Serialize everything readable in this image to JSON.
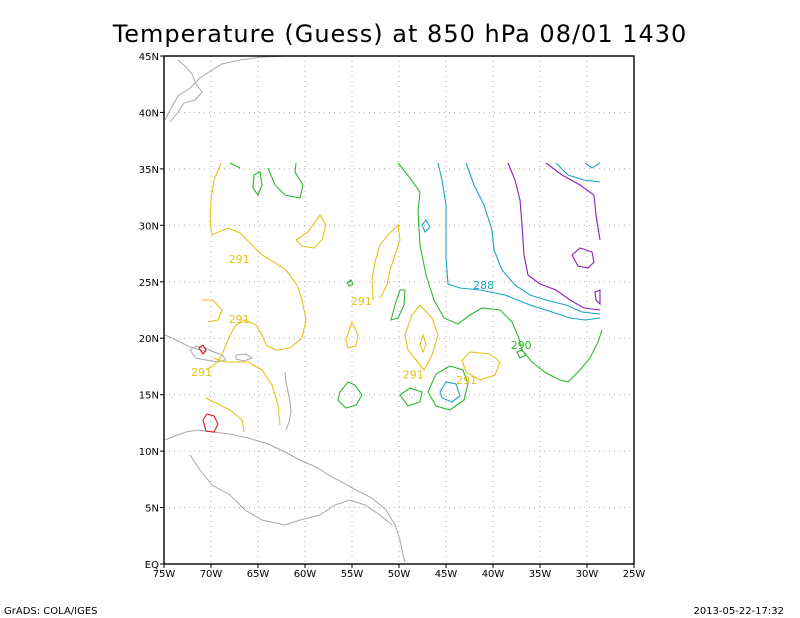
{
  "title": "Temperature (Guess) at 850 hPa 08/01 1430",
  "footer": {
    "left": "GrADS: COLA/IGES",
    "right": "2013-05-22-17:32"
  },
  "map": {
    "lon_range": [
      -75,
      -25
    ],
    "lat_range": [
      0,
      45
    ],
    "x_ticks": [
      "75W",
      "70W",
      "65W",
      "60W",
      "55W",
      "50W",
      "45W",
      "40W",
      "35W",
      "30W",
      "25W"
    ],
    "y_ticks": [
      "EQ",
      "5N",
      "10N",
      "15N",
      "20N",
      "25N",
      "30N",
      "35N",
      "40N",
      "45N"
    ],
    "grid": true
  },
  "contour_labels": [
    {
      "text": "291",
      "lon": -67.0,
      "lat": 27.0,
      "color": "#e6c21a"
    },
    {
      "text": "291",
      "lon": -67.0,
      "lat": 21.7,
      "color": "#e6c21a"
    },
    {
      "text": "291",
      "lon": -71.0,
      "lat": 17.0,
      "color": "#e6c21a"
    },
    {
      "text": "291",
      "lon": -54.0,
      "lat": 23.3,
      "color": "#e6c21a"
    },
    {
      "text": "291",
      "lon": -48.5,
      "lat": 16.8,
      "color": "#e6c21a"
    },
    {
      "text": "291",
      "lon": -42.8,
      "lat": 16.3,
      "color": "#e6c21a"
    },
    {
      "text": "288",
      "lon": -41.0,
      "lat": 24.7,
      "color": "#1ba3c4"
    },
    {
      "text": "290",
      "lon": -37.0,
      "lat": 19.4,
      "color": "#2db82d"
    }
  ],
  "colors": {
    "yellow": "#e6c21a",
    "green": "#2db82d",
    "cyan": "#1ba3c4",
    "purple": "#8a1fb5",
    "red": "#e01a1a",
    "land": "#a8a8a8",
    "grid": "#b0b0b0"
  }
}
